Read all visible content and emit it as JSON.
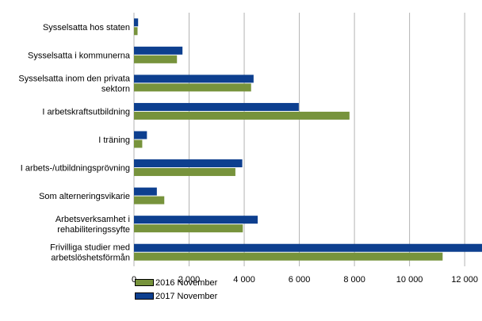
{
  "chart_data": {
    "type": "bar",
    "orientation": "horizontal",
    "title": "",
    "xlabel": "",
    "ylabel": "",
    "categories": [
      [
        "Sysselsatta hos staten"
      ],
      [
        "Sysselsatta i kommunerna"
      ],
      [
        "Sysselsatta inom den privata",
        "sektorn"
      ],
      [
        "I arbetskraftsutbildning"
      ],
      [
        "I träning"
      ],
      [
        "I arbets-/utbildningsprövning"
      ],
      [
        "Som alterneringsvikarie"
      ],
      [
        "Arbetsverksamhet i",
        "rehabiliteringssyfte"
      ],
      [
        "Frivilliga studier med",
        "arbetslöshetsförmån"
      ]
    ],
    "series": [
      {
        "name": "2016 November",
        "color": "#77933c",
        "values": [
          130,
          1560,
          4250,
          7820,
          300,
          3680,
          1100,
          3950,
          11200
        ]
      },
      {
        "name": "2017 November",
        "color": "#0d3f8f",
        "values": [
          150,
          1760,
          4340,
          5980,
          470,
          3930,
          830,
          4490,
          12700
        ]
      }
    ],
    "xlim": [
      0,
      12600
    ],
    "xticks": [
      0,
      2000,
      4000,
      6000,
      8000,
      10000,
      12000
    ],
    "xtick_labels": [
      "0",
      "2 000",
      "4 000",
      "6 000",
      "8 000",
      "10 000",
      "12 000"
    ],
    "grid": true,
    "legend": "bottom-left"
  }
}
